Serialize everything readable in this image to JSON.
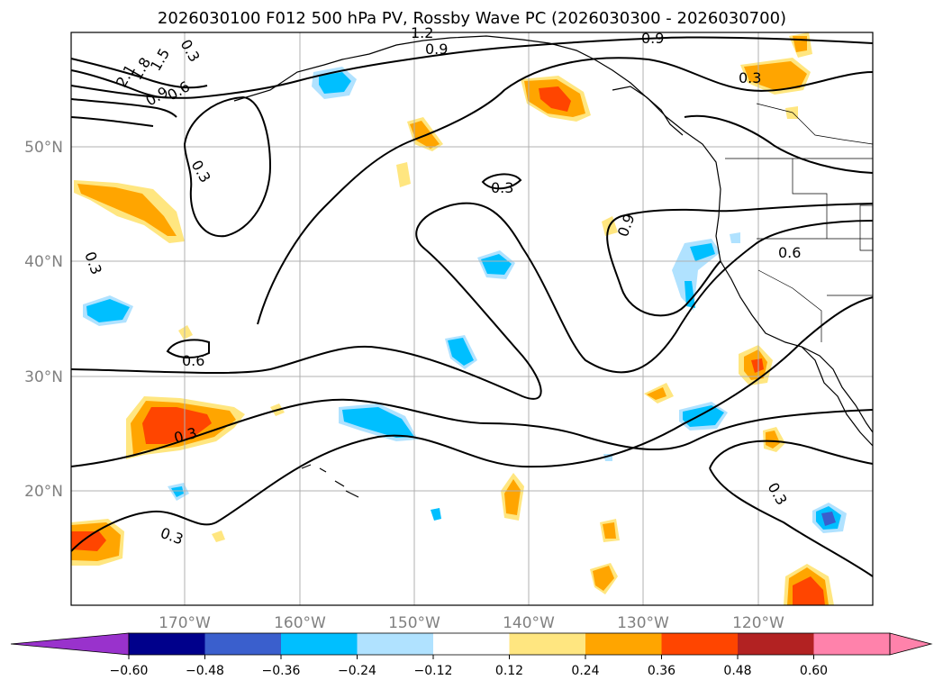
{
  "title": "2026030100 F012 500 hPa PV, Rossby Wave PC (2026030300 - 2026030700)",
  "latitude_labels": [
    "50°N",
    "40°N",
    "30°N",
    "20°N"
  ],
  "longitude_labels": [
    "170°W",
    "160°W",
    "150°W",
    "140°W",
    "130°W",
    "120°W"
  ],
  "contour_labels": [
    "0.3",
    "0.9",
    "0.3",
    "0.3",
    "0.6",
    "0.3",
    "0.9",
    "0.6",
    "0.3",
    "0.3",
    "0.3",
    "0.9",
    "0.6",
    "0.9",
    "1.2",
    "2.1",
    "1.8",
    "1.5",
    "0.3"
  ],
  "colorbar": {
    "tick_labels": [
      "−0.60",
      "−0.48",
      "−0.36",
      "−0.24",
      "−0.12",
      "0.12",
      "0.24",
      "0.36",
      "0.48",
      "0.60"
    ],
    "colors": [
      "#9932cc",
      "#00008b",
      "#3a5fcd",
      "#00bfff",
      "#b0e2ff",
      "#ffffff",
      "#ffe680",
      "#ffa500",
      "#ff4500",
      "#b22222",
      "#ff82ab",
      "#ff82ab"
    ]
  },
  "colors": {
    "contour": "#000000",
    "grid": "#b0b0b0",
    "coast": "#000000"
  }
}
